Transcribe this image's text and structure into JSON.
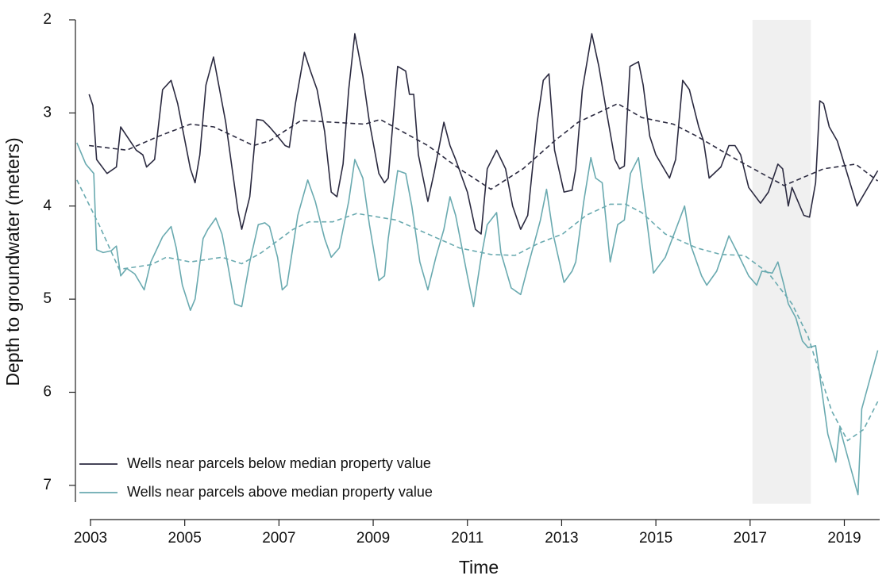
{
  "chart_data": {
    "type": "line",
    "x_label": "Time",
    "y_label": "Depth to groundwater (meters)",
    "xlim": [
      2002.68,
      2019.75
    ],
    "ylim": [
      7.18,
      2
    ],
    "xticks": [
      2003,
      2005,
      2007,
      2009,
      2011,
      2013,
      2015,
      2017,
      2019
    ],
    "yticks": [
      2,
      3,
      4,
      5,
      6,
      7
    ],
    "highlight_x": [
      2017.05,
      2018.29
    ],
    "highlight_color": "#f0f0f0",
    "legend": "bottom-left",
    "series": [
      {
        "name": "Wells near parcels below median property value",
        "color": "#2b2a40",
        "x": [
          2002.97,
          2003.05,
          2003.13,
          2003.35,
          2003.55,
          2003.64,
          2003.97,
          2004.11,
          2004.19,
          2004.36,
          2004.53,
          2004.71,
          2004.85,
          2005.12,
          2005.22,
          2005.32,
          2005.45,
          2005.61,
          2005.87,
          2006.13,
          2006.21,
          2006.38,
          2006.53,
          2006.66,
          2006.8,
          2006.97,
          2007.13,
          2007.22,
          2007.35,
          2007.54,
          2007.67,
          2007.81,
          2007.97,
          2008.11,
          2008.23,
          2008.36,
          2008.48,
          2008.61,
          2008.78,
          2008.92,
          2009.12,
          2009.24,
          2009.32,
          2009.52,
          2009.69,
          2009.77,
          2009.86,
          2009.96,
          2010.16,
          2010.29,
          2010.5,
          2010.63,
          2010.75,
          2011.0,
          2011.17,
          2011.29,
          2011.42,
          2011.62,
          2011.81,
          2011.96,
          2012.13,
          2012.28,
          2012.48,
          2012.61,
          2012.73,
          2012.85,
          2013.05,
          2013.22,
          2013.3,
          2013.44,
          2013.64,
          2013.79,
          2013.94,
          2014.13,
          2014.23,
          2014.33,
          2014.45,
          2014.63,
          2014.73,
          2014.87,
          2015.0,
          2015.29,
          2015.42,
          2015.57,
          2015.71,
          2015.91,
          2016.01,
          2016.13,
          2016.38,
          2016.55,
          2016.68,
          2016.8,
          2016.97,
          2017.22,
          2017.39,
          2017.59,
          2017.69,
          2017.81,
          2017.89,
          2018.14,
          2018.26,
          2018.39,
          2018.48,
          2018.56,
          2018.68,
          2018.85,
          2019.27,
          2019.71
        ],
        "values": [
          2.8,
          2.92,
          3.5,
          3.65,
          3.58,
          3.15,
          3.4,
          3.45,
          3.58,
          3.5,
          2.75,
          2.65,
          2.9,
          3.6,
          3.75,
          3.45,
          2.7,
          2.4,
          3.1,
          4.05,
          4.25,
          3.9,
          3.07,
          3.08,
          3.15,
          3.25,
          3.35,
          3.37,
          2.9,
          2.35,
          2.55,
          2.75,
          3.2,
          3.85,
          3.9,
          3.55,
          2.75,
          2.15,
          2.6,
          3.1,
          3.65,
          3.75,
          3.7,
          2.5,
          2.55,
          2.8,
          2.8,
          3.45,
          3.95,
          3.65,
          3.1,
          3.35,
          3.5,
          3.85,
          4.25,
          4.3,
          3.6,
          3.4,
          3.6,
          4.0,
          4.25,
          4.1,
          3.1,
          2.65,
          2.58,
          3.4,
          3.85,
          3.83,
          3.6,
          2.75,
          2.15,
          2.5,
          2.95,
          3.5,
          3.6,
          3.57,
          2.5,
          2.45,
          2.7,
          3.25,
          3.45,
          3.7,
          3.5,
          2.65,
          2.75,
          3.15,
          3.3,
          3.7,
          3.58,
          3.35,
          3.35,
          3.45,
          3.8,
          3.97,
          3.85,
          3.55,
          3.6,
          4.0,
          3.8,
          4.1,
          4.12,
          3.75,
          2.87,
          2.9,
          3.15,
          3.3,
          4.0,
          3.62
        ],
        "trend": {
          "x": [
            2002.97,
            2003.77,
            2004.45,
            2005.12,
            2005.62,
            2006.46,
            2006.8,
            2007.47,
            2008.14,
            2008.82,
            2009.15,
            2010.16,
            2010.83,
            2011.5,
            2012.18,
            2012.85,
            2013.35,
            2014.19,
            2014.7,
            2015.37,
            2015.87,
            2016.71,
            2017.72,
            2018.56,
            2019.24,
            2019.71
          ],
          "values": [
            3.35,
            3.4,
            3.25,
            3.12,
            3.15,
            3.35,
            3.3,
            3.08,
            3.1,
            3.12,
            3.07,
            3.35,
            3.6,
            3.82,
            3.6,
            3.3,
            3.1,
            2.9,
            3.05,
            3.12,
            3.25,
            3.5,
            3.78,
            3.6,
            3.55,
            3.73
          ]
        }
      },
      {
        "name": "Wells near parcels above median property value",
        "color": "#6aaab0",
        "x": [
          2002.71,
          2002.9,
          2003.07,
          2003.13,
          2003.27,
          2003.44,
          2003.55,
          2003.64,
          2003.77,
          2003.94,
          2004.14,
          2004.28,
          2004.53,
          2004.71,
          2004.82,
          2004.95,
          2005.12,
          2005.22,
          2005.39,
          2005.49,
          2005.66,
          2005.79,
          2005.92,
          2006.06,
          2006.21,
          2006.38,
          2006.56,
          2006.7,
          2006.8,
          2006.97,
          2007.07,
          2007.17,
          2007.4,
          2007.61,
          2007.77,
          2007.97,
          2008.11,
          2008.28,
          2008.48,
          2008.61,
          2008.78,
          2008.92,
          2009.12,
          2009.24,
          2009.32,
          2009.52,
          2009.69,
          2009.82,
          2009.99,
          2010.16,
          2010.33,
          2010.5,
          2010.63,
          2010.75,
          2011.0,
          2011.13,
          2011.29,
          2011.42,
          2011.62,
          2011.71,
          2011.93,
          2012.13,
          2012.31,
          2012.55,
          2012.68,
          2012.82,
          2013.05,
          2013.22,
          2013.3,
          2013.47,
          2013.62,
          2013.72,
          2013.86,
          2014.03,
          2014.19,
          2014.33,
          2014.46,
          2014.63,
          2014.78,
          2014.95,
          2015.2,
          2015.4,
          2015.61,
          2015.74,
          2015.97,
          2016.08,
          2016.29,
          2016.55,
          2016.71,
          2016.97,
          2017.14,
          2017.25,
          2017.47,
          2017.59,
          2017.72,
          2017.81,
          2017.97,
          2018.11,
          2018.23,
          2018.39,
          2018.65,
          2018.82,
          2018.9,
          2019.29,
          2019.37,
          2019.71
        ],
        "values": [
          3.32,
          3.55,
          3.65,
          4.47,
          4.5,
          4.48,
          4.43,
          4.75,
          4.67,
          4.73,
          4.9,
          4.6,
          4.33,
          4.22,
          4.45,
          4.85,
          5.12,
          5.0,
          4.35,
          4.25,
          4.13,
          4.3,
          4.65,
          5.05,
          5.08,
          4.6,
          4.2,
          4.18,
          4.22,
          4.55,
          4.9,
          4.85,
          4.1,
          3.72,
          3.95,
          4.35,
          4.55,
          4.45,
          3.95,
          3.5,
          3.7,
          4.2,
          4.8,
          4.75,
          4.35,
          3.62,
          3.65,
          4.0,
          4.6,
          4.9,
          4.55,
          4.25,
          3.9,
          4.1,
          4.75,
          5.08,
          4.55,
          4.2,
          4.07,
          4.5,
          4.88,
          4.95,
          4.6,
          4.15,
          3.82,
          4.3,
          4.82,
          4.7,
          4.6,
          3.95,
          3.48,
          3.7,
          3.75,
          4.6,
          4.2,
          4.15,
          3.65,
          3.48,
          4.05,
          4.72,
          4.55,
          4.28,
          4.0,
          4.42,
          4.75,
          4.85,
          4.7,
          4.32,
          4.48,
          4.75,
          4.85,
          4.7,
          4.72,
          4.6,
          4.85,
          5.05,
          5.2,
          5.45,
          5.52,
          5.5,
          6.45,
          6.75,
          6.38,
          7.1,
          6.18,
          5.55
        ],
        "trend": {
          "x": [
            2002.71,
            2003.18,
            2003.61,
            2004.28,
            2004.61,
            2005.12,
            2005.79,
            2006.21,
            2006.63,
            2007.3,
            2007.64,
            2008.14,
            2008.65,
            2009.49,
            2010.16,
            2010.83,
            2011.5,
            2012.01,
            2012.51,
            2013.02,
            2013.52,
            2014.03,
            2014.36,
            2014.7,
            2015.2,
            2015.87,
            2016.38,
            2016.88,
            2017.39,
            2017.89,
            2018.23,
            2018.73,
            2019.07,
            2019.41,
            2019.71
          ],
          "values": [
            3.72,
            4.2,
            4.68,
            4.63,
            4.55,
            4.6,
            4.55,
            4.62,
            4.5,
            4.25,
            4.17,
            4.17,
            4.08,
            4.15,
            4.3,
            4.45,
            4.52,
            4.53,
            4.4,
            4.3,
            4.1,
            3.98,
            3.98,
            4.07,
            4.3,
            4.45,
            4.52,
            4.53,
            4.72,
            5.05,
            5.4,
            6.2,
            6.52,
            6.4,
            6.1
          ]
        }
      }
    ]
  }
}
